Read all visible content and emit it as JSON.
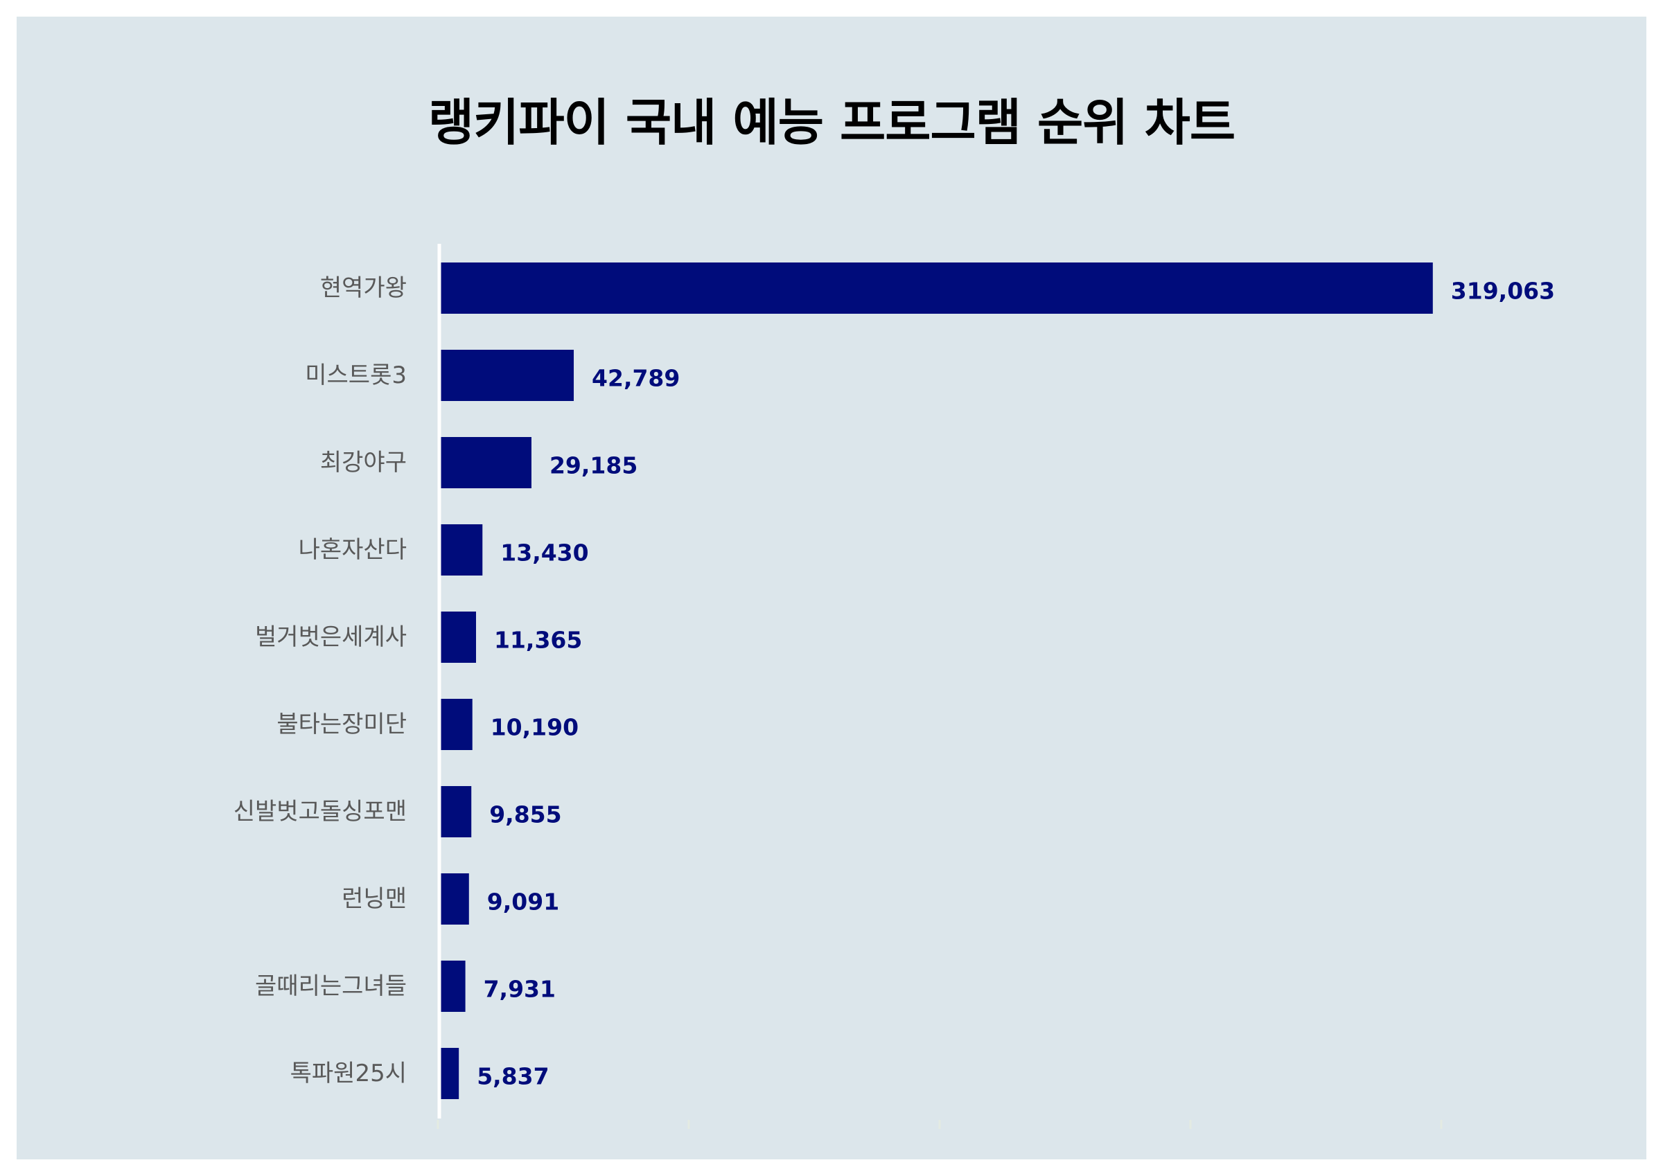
{
  "chart_data": {
    "type": "bar",
    "orientation": "horizontal",
    "title": "랭키파이 국내 예능 프로그램 순위 차트",
    "categories": [
      "현역가왕",
      "미스트롯3",
      "최강야구",
      "나혼자산다",
      "벌거벗은세계사",
      "불타는장미단",
      "신발벗고돌싱포맨",
      "런닝맨",
      "골때리는그녀들",
      "톡파원25시"
    ],
    "values": [
      319063,
      42789,
      29185,
      13430,
      11365,
      10190,
      9855,
      9091,
      7931,
      5837
    ],
    "value_labels": [
      "319,063",
      "42,789",
      "29,185",
      "13,430",
      "11,365",
      "10,190",
      "9,855",
      "9,091",
      "7,931",
      "5,837"
    ],
    "xlim": [
      0,
      320000
    ],
    "grid": false,
    "legend": "none",
    "colors": {
      "bar": "#000c7b",
      "value_label": "#000c7b",
      "category_label": "#595959",
      "background": "#dce6eb",
      "axis": "#ffffff"
    }
  }
}
